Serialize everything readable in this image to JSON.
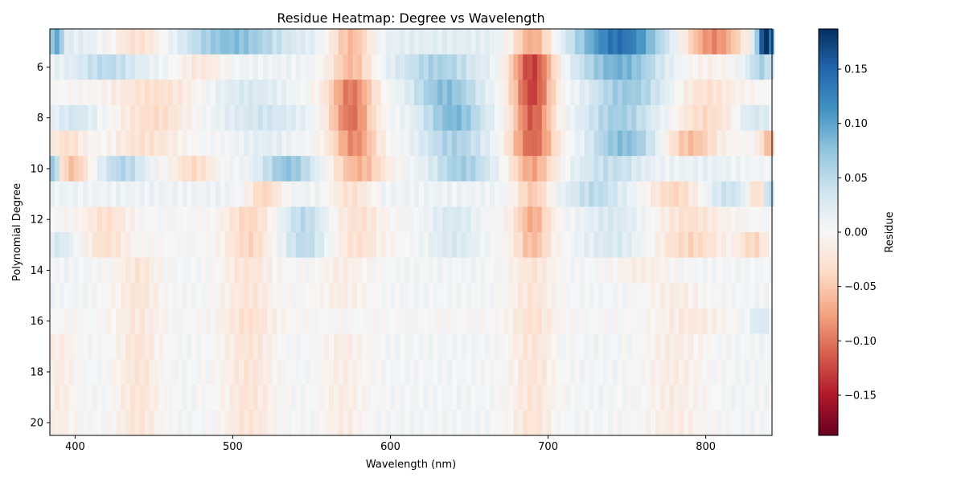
{
  "chart_data": {
    "type": "heatmap",
    "title": "Residue Heatmap: Degree vs Wavelength",
    "xlabel": "Wavelength (nm)",
    "ylabel": "Polynomial Degree",
    "colorbar_label": "Residue",
    "colormap": "RdBu",
    "x_range": [
      384,
      842
    ],
    "x_step": 3,
    "x_ticks": [
      400,
      500,
      600,
      700,
      800
    ],
    "y_degrees": [
      5,
      6,
      7,
      8,
      9,
      10,
      11,
      12,
      13,
      14,
      15,
      16,
      17,
      18,
      19,
      20
    ],
    "y_ticks": [
      6,
      8,
      10,
      12,
      14,
      16,
      18,
      20
    ],
    "value_range": [
      -0.187,
      0.187
    ],
    "colorbar_ticks": [
      0.15,
      0.1,
      0.05,
      0.0,
      -0.05,
      -0.1,
      -0.15
    ],
    "colorbar_tick_labels": [
      "0.15",
      "0.10",
      "0.05",
      "0.00",
      "−0.05",
      "−0.10",
      "−0.15"
    ],
    "row_profiles": [
      {
        "degree": 5,
        "base": 0.02,
        "features": [
          [
            388,
            0.08,
            3
          ],
          [
            440,
            -0.05,
            14
          ],
          [
            500,
            0.06,
            20
          ],
          [
            575,
            -0.08,
            10
          ],
          [
            690,
            -0.09,
            10
          ],
          [
            745,
            0.12,
            18
          ],
          [
            805,
            -0.11,
            14
          ],
          [
            838,
            0.18,
            4
          ]
        ]
      },
      {
        "degree": 6,
        "base": 0.01,
        "features": [
          [
            420,
            0.04,
            14
          ],
          [
            480,
            -0.03,
            12
          ],
          [
            575,
            -0.07,
            10
          ],
          [
            630,
            0.05,
            18
          ],
          [
            690,
            -0.14,
            10
          ],
          [
            745,
            0.08,
            18
          ],
          [
            800,
            -0.02,
            14
          ],
          [
            835,
            0.05,
            6
          ]
        ]
      },
      {
        "degree": 7,
        "base": 0.0,
        "features": [
          [
            450,
            -0.03,
            20
          ],
          [
            510,
            0.03,
            18
          ],
          [
            575,
            -0.1,
            10
          ],
          [
            635,
            0.08,
            16
          ],
          [
            690,
            -0.13,
            9
          ],
          [
            750,
            0.07,
            18
          ],
          [
            800,
            -0.03,
            14
          ]
        ]
      },
      {
        "degree": 8,
        "base": 0.005,
        "features": [
          [
            400,
            0.03,
            10
          ],
          [
            450,
            -0.04,
            16
          ],
          [
            520,
            0.03,
            20
          ],
          [
            575,
            -0.11,
            10
          ],
          [
            640,
            0.08,
            14
          ],
          [
            690,
            -0.12,
            9
          ],
          [
            745,
            0.06,
            16
          ],
          [
            800,
            -0.04,
            14
          ],
          [
            830,
            0.03,
            8
          ]
        ]
      },
      {
        "degree": 9,
        "base": 0.0,
        "features": [
          [
            395,
            -0.03,
            8
          ],
          [
            445,
            -0.03,
            14
          ],
          [
            520,
            0.02,
            16
          ],
          [
            577,
            -0.09,
            10
          ],
          [
            640,
            0.06,
            16
          ],
          [
            690,
            -0.11,
            10
          ],
          [
            748,
            0.08,
            16
          ],
          [
            790,
            -0.06,
            12
          ],
          [
            840,
            -0.06,
            4
          ]
        ]
      },
      {
        "degree": 10,
        "base": 0.005,
        "features": [
          [
            386,
            0.09,
            3
          ],
          [
            398,
            -0.06,
            8
          ],
          [
            430,
            0.05,
            10
          ],
          [
            475,
            -0.04,
            10
          ],
          [
            535,
            0.07,
            12
          ],
          [
            580,
            -0.07,
            12
          ],
          [
            645,
            0.06,
            14
          ],
          [
            690,
            -0.08,
            10
          ],
          [
            740,
            0.04,
            16
          ],
          [
            800,
            0.01,
            14
          ]
        ]
      },
      {
        "degree": 11,
        "base": 0.01,
        "features": [
          [
            520,
            -0.05,
            8
          ],
          [
            575,
            -0.04,
            10
          ],
          [
            690,
            -0.06,
            8
          ],
          [
            730,
            0.04,
            12
          ],
          [
            780,
            -0.05,
            12
          ],
          [
            815,
            0.03,
            10
          ],
          [
            835,
            -0.06,
            6
          ],
          [
            840,
            0.08,
            3
          ]
        ]
      },
      {
        "degree": 12,
        "base": 0.0,
        "features": [
          [
            420,
            -0.03,
            10
          ],
          [
            510,
            -0.04,
            10
          ],
          [
            545,
            0.05,
            10
          ],
          [
            580,
            -0.03,
            10
          ],
          [
            640,
            0.03,
            12
          ],
          [
            690,
            -0.07,
            8
          ],
          [
            740,
            0.03,
            14
          ],
          [
            790,
            -0.03,
            14
          ]
        ]
      },
      {
        "degree": 13,
        "base": 0.0,
        "features": [
          [
            390,
            0.03,
            8
          ],
          [
            420,
            -0.03,
            10
          ],
          [
            510,
            -0.04,
            10
          ],
          [
            545,
            0.05,
            10
          ],
          [
            580,
            -0.03,
            10
          ],
          [
            640,
            0.03,
            12
          ],
          [
            690,
            -0.06,
            8
          ],
          [
            740,
            0.03,
            14
          ],
          [
            790,
            -0.04,
            14
          ],
          [
            830,
            -0.04,
            6
          ]
        ]
      },
      {
        "degree": 14,
        "base": 0.005,
        "features": [
          [
            440,
            -0.03,
            10
          ],
          [
            510,
            -0.03,
            12
          ],
          [
            570,
            -0.02,
            12
          ],
          [
            690,
            -0.03,
            10
          ],
          [
            760,
            -0.02,
            14
          ]
        ]
      },
      {
        "degree": 15,
        "base": 0.005,
        "features": [
          [
            440,
            -0.03,
            10
          ],
          [
            510,
            -0.03,
            12
          ],
          [
            570,
            -0.02,
            12
          ],
          [
            690,
            -0.03,
            10
          ],
          [
            780,
            -0.02,
            14
          ]
        ]
      },
      {
        "degree": 16,
        "base": 0.0,
        "features": [
          [
            440,
            -0.02,
            10
          ],
          [
            510,
            -0.03,
            12
          ],
          [
            690,
            -0.03,
            10
          ],
          [
            790,
            -0.02,
            14
          ],
          [
            835,
            0.03,
            6
          ]
        ]
      },
      {
        "degree": 17,
        "base": 0.005,
        "features": [
          [
            390,
            -0.02,
            8
          ],
          [
            440,
            -0.03,
            10
          ],
          [
            510,
            -0.03,
            12
          ],
          [
            570,
            -0.02,
            10
          ],
          [
            690,
            -0.03,
            10
          ],
          [
            780,
            -0.02,
            14
          ]
        ]
      },
      {
        "degree": 18,
        "base": 0.005,
        "features": [
          [
            390,
            -0.02,
            8
          ],
          [
            440,
            -0.03,
            10
          ],
          [
            510,
            -0.03,
            12
          ],
          [
            570,
            -0.02,
            10
          ],
          [
            690,
            -0.03,
            10
          ],
          [
            780,
            -0.02,
            14
          ]
        ]
      },
      {
        "degree": 19,
        "base": 0.005,
        "features": [
          [
            390,
            -0.02,
            8
          ],
          [
            440,
            -0.03,
            10
          ],
          [
            510,
            -0.03,
            12
          ],
          [
            570,
            -0.02,
            10
          ],
          [
            690,
            -0.03,
            10
          ],
          [
            780,
            -0.02,
            14
          ]
        ]
      },
      {
        "degree": 20,
        "base": 0.005,
        "features": [
          [
            390,
            -0.02,
            8
          ],
          [
            440,
            -0.03,
            10
          ],
          [
            510,
            -0.03,
            12
          ],
          [
            570,
            -0.02,
            10
          ],
          [
            690,
            -0.03,
            10
          ],
          [
            780,
            -0.02,
            14
          ]
        ]
      }
    ]
  }
}
